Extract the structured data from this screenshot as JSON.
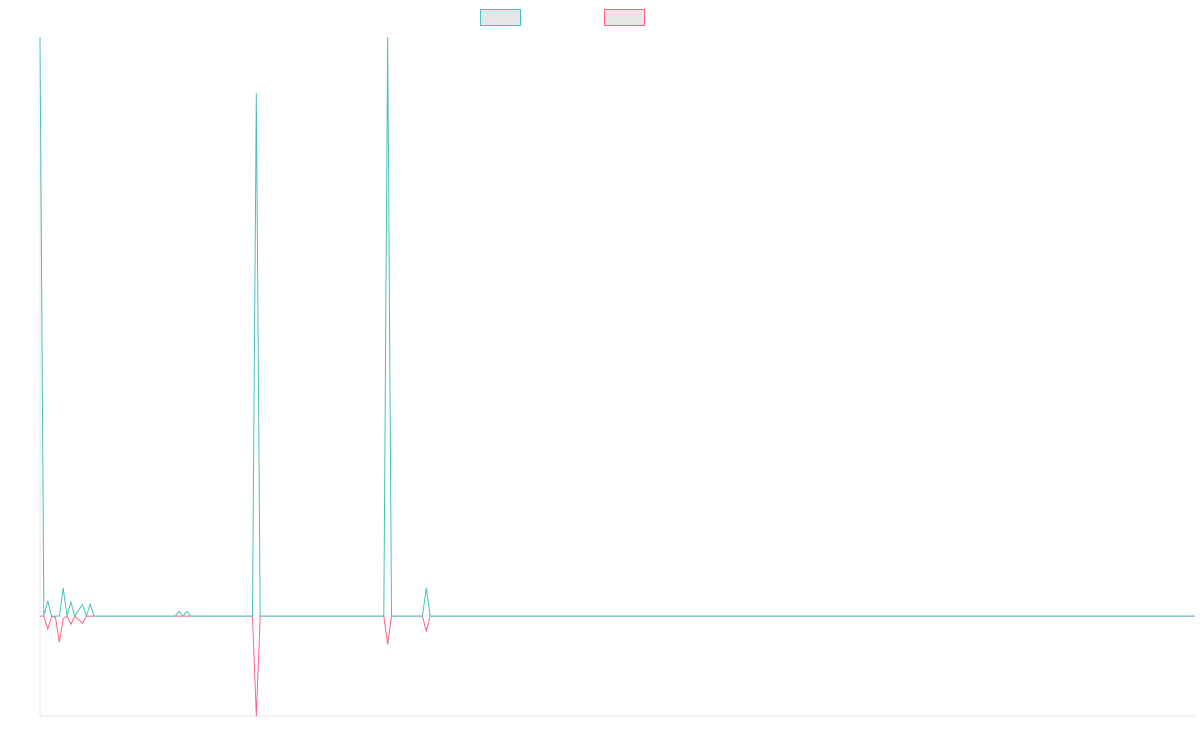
{
  "chart_data": {
    "type": "line",
    "title": "",
    "xlabel": "",
    "ylabel": "",
    "x_count": 300,
    "ylim": [
      -85,
      493
    ],
    "grid": false,
    "legend": {
      "placement": "top-center",
      "entries": [
        {
          "name": "",
          "color": "#4BC0C0",
          "fill": "#E6E6E6"
        },
        {
          "name": "",
          "color": "#FF6384",
          "fill": "#E6E6E6"
        }
      ]
    },
    "series": [
      {
        "name": "",
        "color": "#4BC0C0",
        "points": [
          [
            0,
            493
          ],
          [
            1,
            0
          ],
          [
            2,
            13
          ],
          [
            3,
            0
          ],
          [
            5,
            0
          ],
          [
            6,
            24
          ],
          [
            7,
            0
          ],
          [
            8,
            12
          ],
          [
            9,
            0
          ],
          [
            11,
            10
          ],
          [
            12,
            0
          ],
          [
            13,
            10
          ],
          [
            14,
            0
          ],
          [
            35,
            0
          ],
          [
            36,
            4
          ],
          [
            37,
            0
          ],
          [
            38,
            4
          ],
          [
            39,
            0
          ],
          [
            55,
            0
          ],
          [
            56,
            445
          ],
          [
            57,
            0
          ],
          [
            89,
            0
          ],
          [
            90,
            493
          ],
          [
            91,
            0
          ],
          [
            99,
            0
          ],
          [
            100,
            24
          ],
          [
            101,
            0
          ],
          [
            299,
            0
          ]
        ]
      },
      {
        "name": "",
        "color": "#FF6384",
        "points": [
          [
            0,
            0
          ],
          [
            1,
            0
          ],
          [
            2,
            -11
          ],
          [
            3,
            0
          ],
          [
            4,
            -1
          ],
          [
            5,
            -22
          ],
          [
            6,
            -2
          ],
          [
            7,
            0
          ],
          [
            8,
            -7
          ],
          [
            9,
            0
          ],
          [
            11,
            -6
          ],
          [
            12,
            0
          ],
          [
            55,
            0
          ],
          [
            56,
            -85
          ],
          [
            57,
            0
          ],
          [
            89,
            0
          ],
          [
            90,
            -24
          ],
          [
            91,
            0
          ],
          [
            99,
            0
          ],
          [
            100,
            -13
          ],
          [
            101,
            0
          ],
          [
            299,
            0
          ]
        ]
      }
    ]
  }
}
